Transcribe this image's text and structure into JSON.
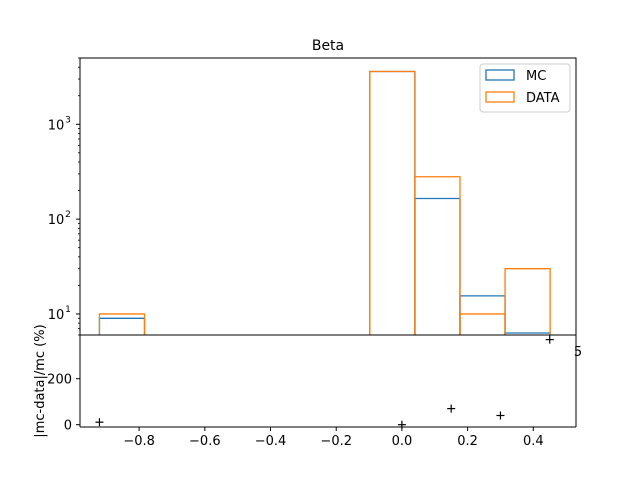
{
  "chart_data": [
    {
      "type": "histogram",
      "title": "Beta",
      "yscale": "log",
      "ylim": [
        6.0,
        5000
      ],
      "xlim": [
        -0.98,
        0.53
      ],
      "yticks": [
        {
          "value": 10,
          "label": "10",
          "exp": "1"
        },
        {
          "value": 100,
          "label": "10",
          "exp": "2"
        },
        {
          "value": 1000,
          "label": "10",
          "exp": "3"
        }
      ],
      "bin_edges": [
        -0.9208,
        -0.7836,
        -0.6464,
        -0.5092,
        -0.372,
        -0.2348,
        -0.0976,
        0.0396,
        0.1768,
        0.314,
        0.4512
      ],
      "legend_position": "upper right",
      "series": [
        {
          "name": "MC",
          "color": "#1f77b4",
          "values": [
            9,
            0,
            0,
            0,
            0,
            0,
            3600,
            165,
            15.5,
            6.3
          ]
        },
        {
          "name": "DATA",
          "color": "#ff7f0e",
          "values": [
            10,
            0,
            0,
            0,
            0,
            0,
            3600,
            280,
            10,
            30
          ]
        }
      ]
    },
    {
      "type": "scatter",
      "xlabel": "",
      "ylabel": "|mc-data|/mc (%)",
      "xlim": [
        -0.98,
        0.53
      ],
      "ylim": [
        -10,
        390
      ],
      "xticks": [
        -0.8,
        -0.6,
        -0.4,
        -0.2,
        0.0,
        0.2,
        0.4
      ],
      "xtick_labels": [
        "−0.8",
        "−0.6",
        "−0.4",
        "−0.2",
        "0.0",
        "0.2",
        "0.4"
      ],
      "yticks": [
        0,
        200
      ],
      "marker": "+",
      "points": [
        {
          "x": -0.9208,
          "y": 11
        },
        {
          "x": 0.0,
          "y": 0
        },
        {
          "x": 0.15,
          "y": 70
        },
        {
          "x": 0.3,
          "y": 40
        },
        {
          "x": 0.45,
          "y": 370
        }
      ],
      "clipped_tick_label": "5"
    }
  ]
}
